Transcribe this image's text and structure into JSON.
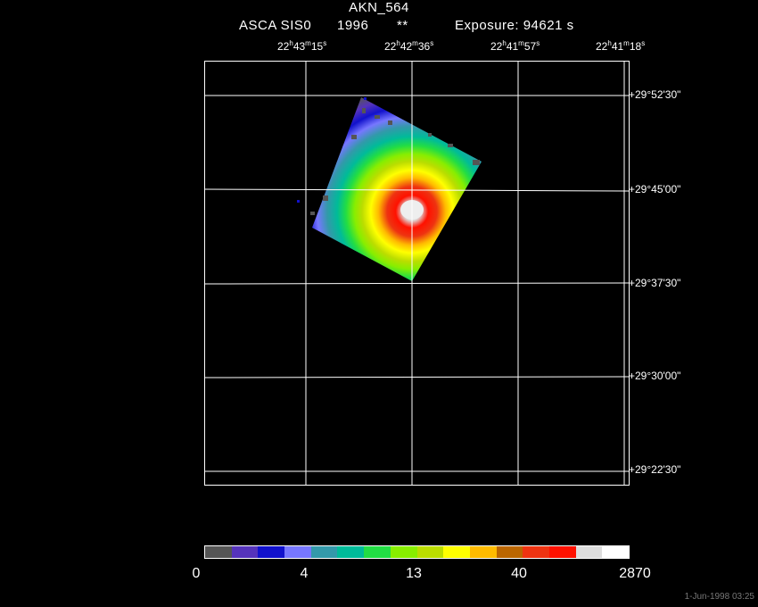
{
  "header": {
    "title": "AKN_564",
    "instrument": "ASCA SIS0",
    "year": "1996",
    "stars": "**",
    "exposure": "Exposure: 94621 s"
  },
  "ra_ticks": [
    {
      "h": "22",
      "m": "43",
      "s": "15"
    },
    {
      "h": "22",
      "m": "42",
      "s": "36"
    },
    {
      "h": "22",
      "m": "41",
      "s": "57"
    },
    {
      "h": "22",
      "m": "41",
      "s": "18"
    }
  ],
  "dec_ticks": [
    "+29°52'30\"",
    "+29°45'00\"",
    "+29°37'30\"",
    "+29°30'00\"",
    "+29°22'30\""
  ],
  "colorbar": {
    "colors": [
      "#555555",
      "#5533bb",
      "#1111cc",
      "#7777ff",
      "#3399aa",
      "#00bb99",
      "#22dd44",
      "#88ee00",
      "#bbdd00",
      "#ffff00",
      "#ffbb00",
      "#bb6600",
      "#ee3311",
      "#ff1100",
      "#dddddd",
      "#ffffff"
    ],
    "labels": [
      "0",
      "4",
      "13",
      "40",
      "2870"
    ]
  },
  "footer": {
    "timestamp": "1-Jun-1998 03:25"
  }
}
